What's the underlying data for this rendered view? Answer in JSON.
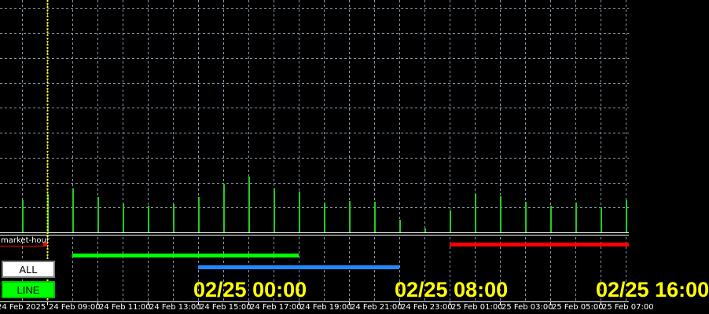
{
  "indicator_label": "market-hour",
  "buttons": {
    "all": "ALL",
    "line": "LINE"
  },
  "session_labels": [
    "02/25 00:00",
    "02/25 08:00",
    "02/25 16:00"
  ],
  "x_axis_labels": [
    "24 Feb 2025",
    "24 Feb 09:00",
    "24 Feb 11:00",
    "24 Feb 13:00",
    "24 Feb 15:00",
    "24 Feb 17:00",
    "24 Feb 19:00",
    "24 Feb 21:00",
    "24 Feb 23:00",
    "25 Feb 01:00",
    "25 Feb 03:00",
    "25 Feb 05:00",
    "25 Feb 07:00"
  ],
  "volume_bars": [
    41,
    49,
    56,
    45,
    37,
    34,
    36,
    45,
    62,
    71,
    56,
    52,
    38,
    40,
    39,
    16,
    5,
    28,
    49,
    46,
    39,
    34,
    38,
    32,
    41
  ],
  "colors": {
    "background": "#000000",
    "grid": "#8899aa",
    "volume": "#22cc22",
    "cursor": "#ffff00",
    "session1": "#00ff00",
    "session2": "#2288ff",
    "session3": "#ff0000",
    "label": "#ffff00"
  }
}
